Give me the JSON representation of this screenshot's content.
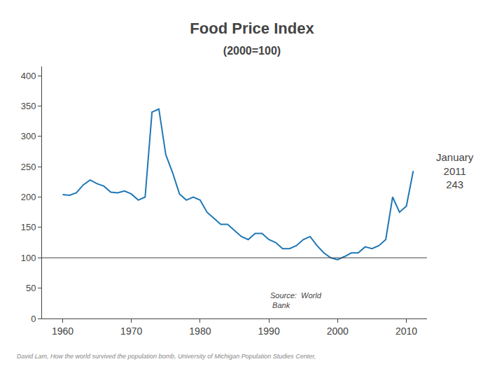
{
  "chart_data": {
    "type": "line",
    "title": "Food Price Index",
    "subtitle": "(2000=100)",
    "x": [
      1960,
      1961,
      1962,
      1963,
      1964,
      1965,
      1966,
      1967,
      1968,
      1969,
      1970,
      1971,
      1972,
      1973,
      1974,
      1975,
      1976,
      1977,
      1978,
      1979,
      1980,
      1981,
      1982,
      1983,
      1984,
      1985,
      1986,
      1987,
      1988,
      1989,
      1990,
      1991,
      1992,
      1993,
      1994,
      1995,
      1996,
      1997,
      1998,
      1999,
      2000,
      2001,
      2002,
      2003,
      2004,
      2005,
      2006,
      2007,
      2008,
      2009,
      2010,
      2011
    ],
    "values": [
      204,
      203,
      207,
      220,
      228,
      222,
      218,
      208,
      207,
      210,
      205,
      195,
      200,
      340,
      345,
      270,
      240,
      205,
      195,
      200,
      195,
      175,
      165,
      155,
      155,
      145,
      135,
      130,
      140,
      140,
      130,
      125,
      115,
      115,
      120,
      130,
      135,
      120,
      108,
      100,
      97,
      102,
      108,
      108,
      118,
      115,
      120,
      130,
      200,
      175,
      185,
      243
    ],
    "hline": 100,
    "annotation": "January\n2011\n243",
    "source": "Source:  World\n Bank",
    "footer": "David Lam, How the world survived the population bomb, University of Michigan Population Studies Center,",
    "xlim": [
      1957,
      2013
    ],
    "ylim": [
      0,
      415
    ],
    "xticks": [
      1960,
      1970,
      1980,
      1990,
      2000,
      2010
    ],
    "yticks": [
      0,
      50,
      100,
      150,
      200,
      250,
      300,
      350,
      400
    ],
    "grid": false
  }
}
